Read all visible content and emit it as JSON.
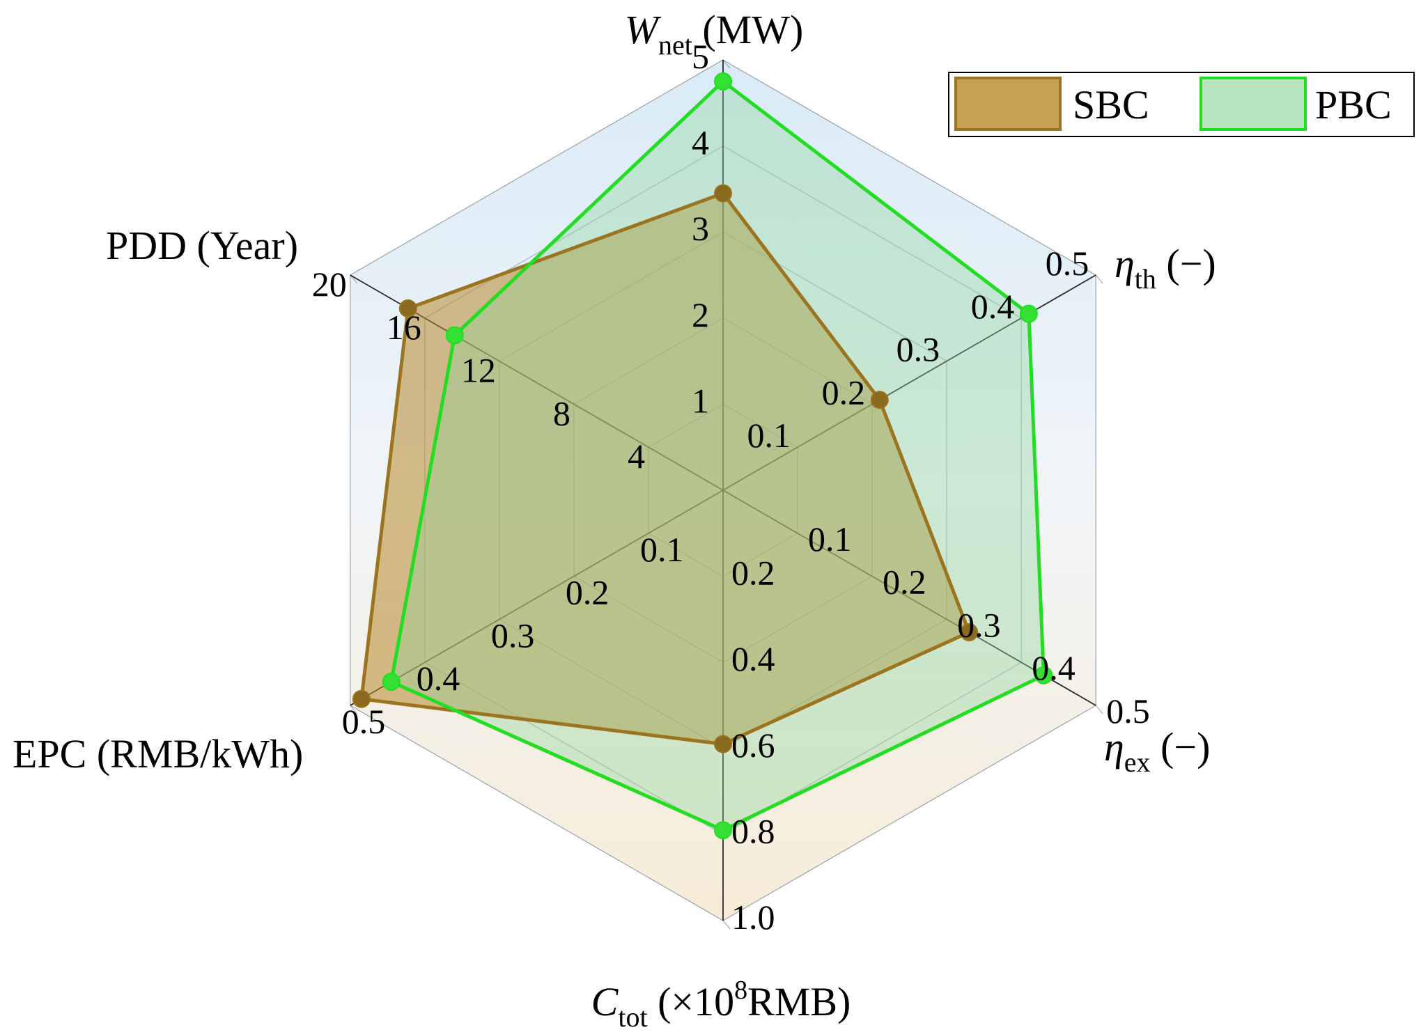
{
  "chart_data": {
    "type": "radar",
    "axes": [
      {
        "key": "wnet",
        "symbol": "W",
        "sub": "net",
        "unit": " (MW)",
        "ticks": [
          "1",
          "2",
          "3",
          "4",
          "5"
        ],
        "max": 5
      },
      {
        "key": "eta_th",
        "symbol": "η",
        "sub": "th",
        "unit": " (−)",
        "ticks": [
          "0.1",
          "0.2",
          "0.3",
          "0.4",
          "0.5"
        ],
        "max": 0.5
      },
      {
        "key": "eta_ex",
        "symbol": "η",
        "sub": "ex",
        "unit": " (−)",
        "ticks": [
          "0.1",
          "0.2",
          "0.3",
          "0.4",
          "0.5"
        ],
        "max": 0.5
      },
      {
        "key": "ctot",
        "symbol": "C",
        "sub": "tot",
        "unit": " (×10",
        "sup": "8",
        "unit2": "RMB)",
        "ticks": [
          "0.2",
          "0.4",
          "0.6",
          "0.8",
          "1.0"
        ],
        "max": 1.0
      },
      {
        "key": "epc",
        "label": "EPC (RMB/kWh)",
        "ticks": [
          "0.1",
          "0.2",
          "0.3",
          "0.4",
          "0.5"
        ],
        "max": 0.5
      },
      {
        "key": "pdd",
        "label": "PDD (Year)",
        "ticks": [
          "4",
          "8",
          "12",
          "16",
          "20"
        ],
        "max": 20
      }
    ],
    "series": [
      {
        "name": "SBC",
        "values": [
          3.45,
          0.21,
          0.33,
          0.59,
          0.485,
          16.9
        ],
        "line": "#9c7420",
        "fill": "#b8892c",
        "fill_opacity": 0.55,
        "marker": "#8a6a1f"
      },
      {
        "name": "PBC",
        "values": [
          4.75,
          0.41,
          0.43,
          0.79,
          0.445,
          14.4
        ],
        "line": "#22dd22",
        "fill": "#8fd49a",
        "fill_opacity": 0.38,
        "marker": "#33e033"
      }
    ],
    "legend_position": "top-right"
  }
}
